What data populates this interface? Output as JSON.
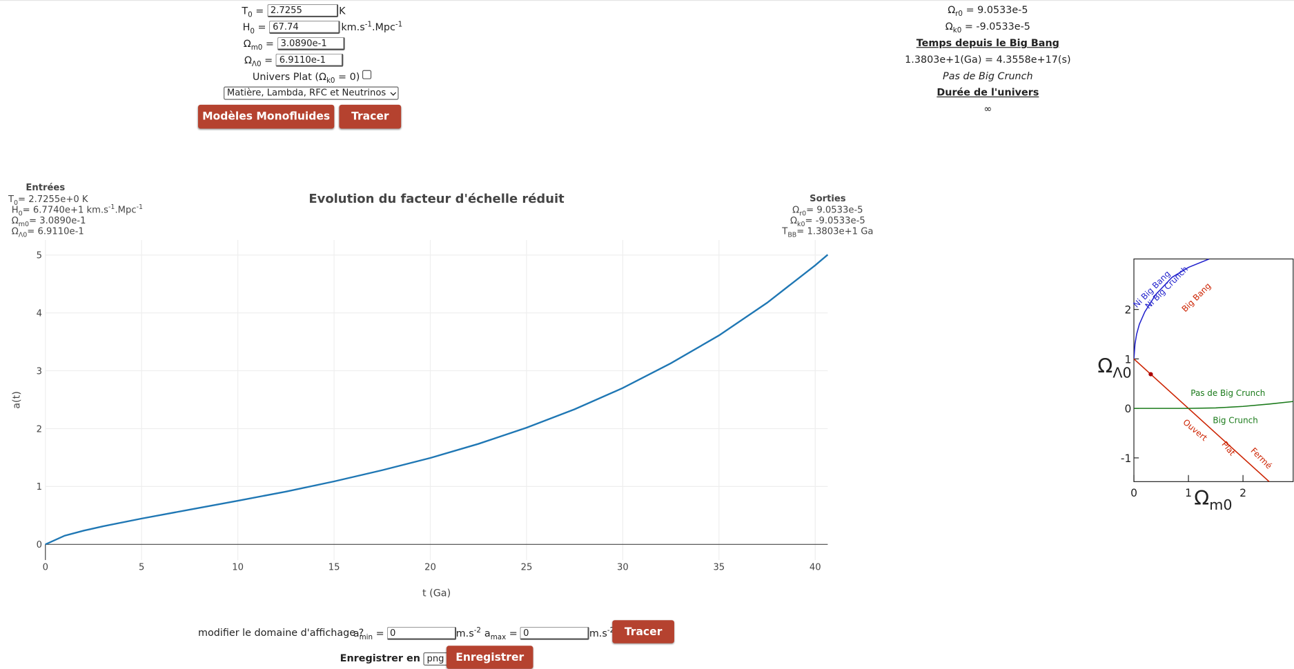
{
  "form": {
    "fields": [
      {
        "label": [
          {
            "text": "T"
          },
          {
            "sub": "0"
          },
          {
            "text": " ="
          }
        ],
        "value": "2.7255",
        "unit": [
          {
            "text": "K"
          }
        ]
      },
      {
        "label": [
          {
            "text": "H"
          },
          {
            "sub": "0"
          },
          {
            "text": " ="
          }
        ],
        "value": "67.74",
        "unit": [
          {
            "text": "km.s"
          },
          {
            "sup": "-1"
          },
          {
            "text": ".Mpc"
          },
          {
            "sup": "-1"
          }
        ]
      },
      {
        "label": [
          {
            "text": "Ω"
          },
          {
            "sub": "m0"
          },
          {
            "text": " ="
          }
        ],
        "value": "3.0890e-1"
      },
      {
        "label": [
          {
            "text": "Ω"
          },
          {
            "sub": "Λ0"
          },
          {
            "text": " ="
          }
        ],
        "value": "6.9110e-1"
      }
    ],
    "flat_checkbox": [
      {
        "text": "Univers Plat (Ω"
      },
      {
        "sub": "k0"
      },
      {
        "text": " = 0)"
      }
    ],
    "model_select": "Matière, Lambda, RFC et Neutrinos",
    "buttons": [
      "Modèles Monofluides",
      "Tracer"
    ]
  },
  "results": [
    [
      {
        "text": "Ω"
      },
      {
        "sub": "r0"
      },
      {
        "text": " = 9.0533e-5"
      }
    ],
    [
      {
        "text": "Ω"
      },
      {
        "sub": "k0"
      },
      {
        "text": " = -9.0533e-5"
      }
    ],
    [
      {
        "heading": "Temps depuis le Big Bang"
      }
    ],
    [
      {
        "text": "1.3803e+1(Ga) = 4.3558e+17(s)"
      }
    ],
    [
      {
        "em": "Pas de Big Crunch"
      }
    ],
    [
      {
        "heading": "Durée de l'univers"
      }
    ],
    [
      {
        "text": "∞"
      }
    ]
  ],
  "chart_data": [
    {
      "type": "line",
      "title": "Evolution du facteur d'échelle réduit",
      "inputs_title": "Entrées",
      "inputs": [
        [
          {
            "text": "T"
          },
          {
            "sub": "0"
          },
          {
            "text": "= 2.7255e+0 K"
          }
        ],
        [
          {
            "text": "H"
          },
          {
            "sub": "0"
          },
          {
            "text": "= 6.7740e+1 km.s"
          },
          {
            "sup": "-1"
          },
          {
            "text": ".Mpc"
          },
          {
            "sup": "-1"
          }
        ],
        [
          {
            "text": "Ω"
          },
          {
            "sub": "m0"
          },
          {
            "text": "= 3.0890e-1"
          }
        ],
        [
          {
            "text": "Ω"
          },
          {
            "sub": "Λ0"
          },
          {
            "text": "= 6.9110e-1"
          }
        ]
      ],
      "outputs_title": "Sorties",
      "outputs": [
        [
          {
            "text": "Ω"
          },
          {
            "sub": "r0"
          },
          {
            "text": "= 9.0533e-5"
          }
        ],
        [
          {
            "text": "Ω"
          },
          {
            "sub": "k0"
          },
          {
            "text": "= -9.0533e-5"
          }
        ],
        [
          {
            "text": "T"
          },
          {
            "sub": "BB"
          },
          {
            "text": "= 1.3803e+1 Ga"
          }
        ]
      ],
      "x_label": "t (Ga)",
      "y_label": "a(t)",
      "xlim": [
        0,
        40.65
      ],
      "xticks": [
        0,
        5,
        10,
        15,
        20,
        25,
        30,
        35,
        40
      ],
      "ylim": [
        -0.27,
        5.26
      ],
      "yticks": [
        0,
        1,
        2,
        3,
        4,
        5
      ],
      "grid": true,
      "series": [
        {
          "color": "#1f77b4",
          "x": [
            0,
            1,
            2,
            3,
            5,
            7.5,
            10,
            12.5,
            15,
            17.5,
            20,
            22.5,
            25,
            27.5,
            30,
            32.5,
            35,
            37.5,
            40,
            40.65
          ],
          "values": [
            0,
            0.15,
            0.238,
            0.313,
            0.446,
            0.6,
            0.753,
            0.912,
            1.088,
            1.282,
            1.493,
            1.737,
            2.016,
            2.335,
            2.702,
            3.13,
            3.611,
            4.175,
            4.823,
            5.006
          ]
        }
      ]
    },
    {
      "type": "line",
      "x_label": [
        {
          "text": "Ω"
        },
        {
          "sub": "m0"
        }
      ],
      "y_label": [
        {
          "text": "Ω"
        },
        {
          "sub": "Λ0"
        }
      ],
      "xlim": [
        0,
        2.92
      ],
      "xticks": [
        0,
        1,
        2
      ],
      "ylim": [
        -1.48,
        3.02
      ],
      "yticks": [
        -1,
        0,
        1,
        2
      ],
      "series": [
        {
          "color": "#2222cc",
          "x": [
            0,
            0.02,
            0.05,
            0.1,
            0.2,
            0.4,
            0.7,
            1.0,
            1.38
          ],
          "values": [
            1,
            1.3,
            1.5,
            1.7,
            1.95,
            2.3,
            2.65,
            2.85,
            3.02
          ]
        },
        {
          "color": "#cc2200",
          "x": [
            0,
            2.48
          ],
          "values": [
            1,
            -1.48
          ]
        },
        {
          "color": "#1a7a1a",
          "x": [
            0,
            1,
            1.5,
            2,
            2.5,
            2.92
          ],
          "values": [
            0,
            0,
            0.01,
            0.04,
            0.09,
            0.14
          ]
        }
      ],
      "point": {
        "x": 0.309,
        "y": 0.691,
        "color": "#aa0000"
      },
      "annotations": [
        {
          "text": "Ni Big Bang",
          "color": "#2222cc"
        },
        {
          "text": "Ni Big Crunch",
          "color": "#2222cc"
        },
        {
          "text": "Big Bang",
          "color": "#cc2200"
        },
        {
          "text": "Pas de Big Crunch",
          "color": "#1a7a1a"
        },
        {
          "text": "Big Crunch",
          "color": "#1a7a1a"
        },
        {
          "text": "Ouvert",
          "color": "#cc2200"
        },
        {
          "text": "Plat",
          "color": "#cc2200"
        },
        {
          "text": "Fermé",
          "color": "#cc2200"
        }
      ]
    }
  ],
  "display": {
    "label": "modifier le domaine d'affichage ?",
    "amin_label": [
      {
        "text": "a"
      },
      {
        "sub": "min"
      },
      {
        "text": " ="
      }
    ],
    "amin_value": "0",
    "amax_label": [
      {
        "text": "a"
      },
      {
        "sub": "max"
      },
      {
        "text": " ="
      }
    ],
    "amax_value": "0",
    "unit": [
      {
        "text": "m.s"
      },
      {
        "sup": "-2"
      }
    ],
    "button": "Tracer",
    "save_label": "Enregistrer en",
    "save_format": "png",
    "save_button": "Enregistrer"
  }
}
